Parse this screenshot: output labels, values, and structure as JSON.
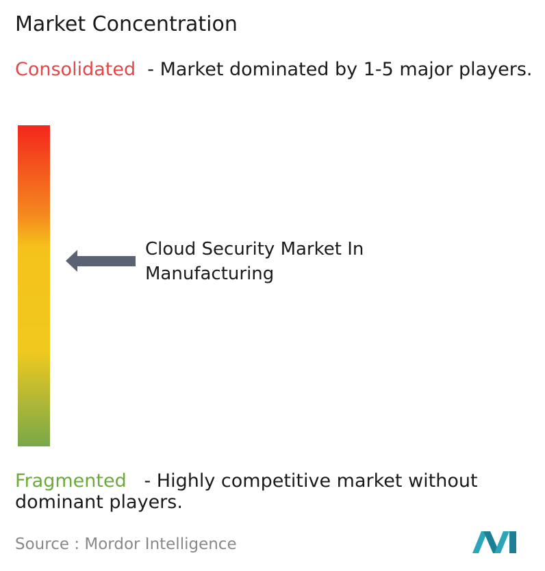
{
  "header": {
    "title": "Market Concentration"
  },
  "consolidated": {
    "label": "Consolidated",
    "description": "- Market dominated by 1-5 major players."
  },
  "marker": {
    "label": "Cloud Security Market In Manufacturing"
  },
  "fragmented": {
    "label": "Fragmented",
    "description": "- Highly competitive market without dominant players."
  },
  "footer": {
    "source_label": "Source :",
    "source": "Mordor Intelligence"
  }
}
